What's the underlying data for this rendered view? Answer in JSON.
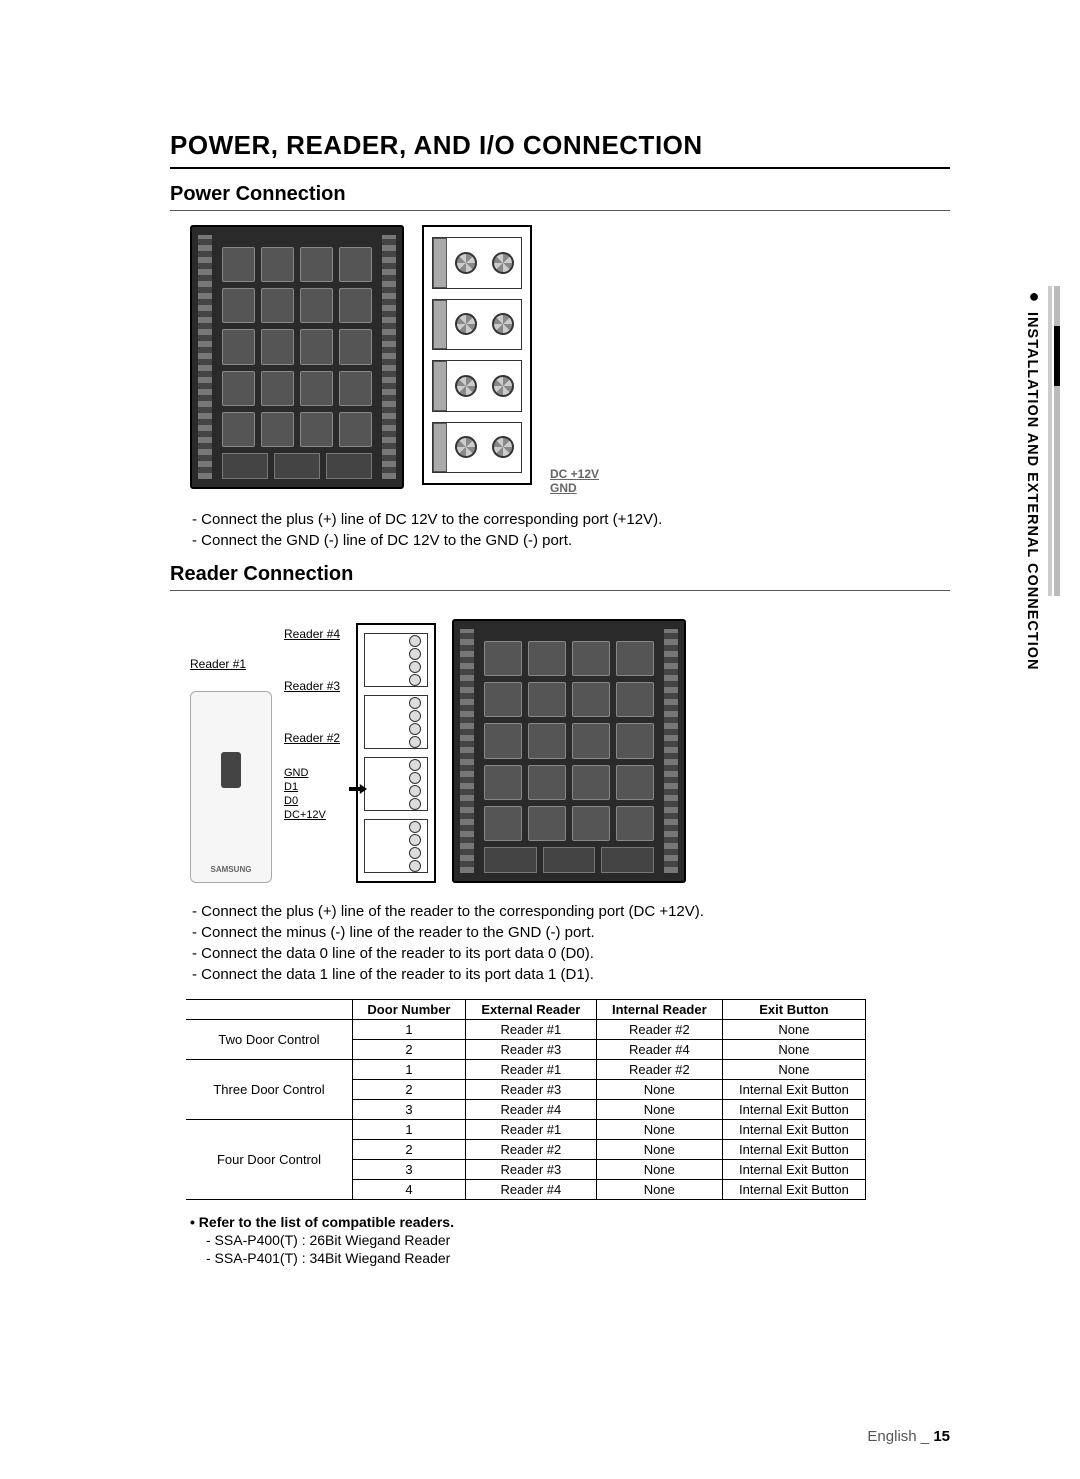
{
  "side_tab": "INSTALLATION AND EXTERNAL CONNECTION",
  "h1": "POWER, READER, AND I/O CONNECTION",
  "power_h2": "Power Connection",
  "power_labels": {
    "dc": "DC +12V",
    "gnd": "GND"
  },
  "power_bullets": [
    "- Connect the plus (+) line of DC 12V to the corresponding port (+12V).",
    "- Connect the GND (-) line of DC 12V to the GND (-) port."
  ],
  "reader_h2": "Reader Connection",
  "reader_labels": {
    "r1": "Reader #1",
    "r2": "Reader #2",
    "r3": "Reader #3",
    "r4": "Reader #4",
    "gnd": "GND",
    "d1": "D1",
    "d0": "D0",
    "dc": "DC+12V"
  },
  "reader_bullets": [
    "- Connect the plus (+) line of the reader to the corresponding port (DC +12V).",
    "- Connect the minus (-) line of the reader to the GND (-) port.",
    "- Connect the data 0 line of the reader to its port data 0 (D0).",
    "- Connect the data 1 line of the reader to its port data 1 (D1)."
  ],
  "table": {
    "columns": [
      "",
      "Door Number",
      "External Reader",
      "Internal Reader",
      "Exit Button"
    ],
    "groups": [
      {
        "name": "Two Door Control",
        "rows": [
          [
            "1",
            "Reader #1",
            "Reader #2",
            "None"
          ],
          [
            "2",
            "Reader #3",
            "Reader #4",
            "None"
          ]
        ]
      },
      {
        "name": "Three Door Control",
        "rows": [
          [
            "1",
            "Reader #1",
            "Reader #2",
            "None"
          ],
          [
            "2",
            "Reader #3",
            "None",
            "Internal Exit Button"
          ],
          [
            "3",
            "Reader #4",
            "None",
            "Internal Exit Button"
          ]
        ]
      },
      {
        "name": "Four Door Control",
        "rows": [
          [
            "1",
            "Reader #1",
            "None",
            "Internal Exit Button"
          ],
          [
            "2",
            "Reader #2",
            "None",
            "Internal Exit Button"
          ],
          [
            "3",
            "Reader #3",
            "None",
            "Internal Exit Button"
          ],
          [
            "4",
            "Reader #4",
            "None",
            "Internal Exit Button"
          ]
        ]
      }
    ],
    "col_widths": [
      "150px",
      "110px",
      "140px",
      "140px",
      "150px"
    ]
  },
  "note_head": "• Refer to the list of compatible readers.",
  "note_lines": [
    "- SSA-P400(T) : 26Bit Wiegand Reader",
    "- SSA-P401(T) : 34Bit Wiegand Reader"
  ],
  "footer": {
    "lang": "English _",
    "page": "15"
  }
}
